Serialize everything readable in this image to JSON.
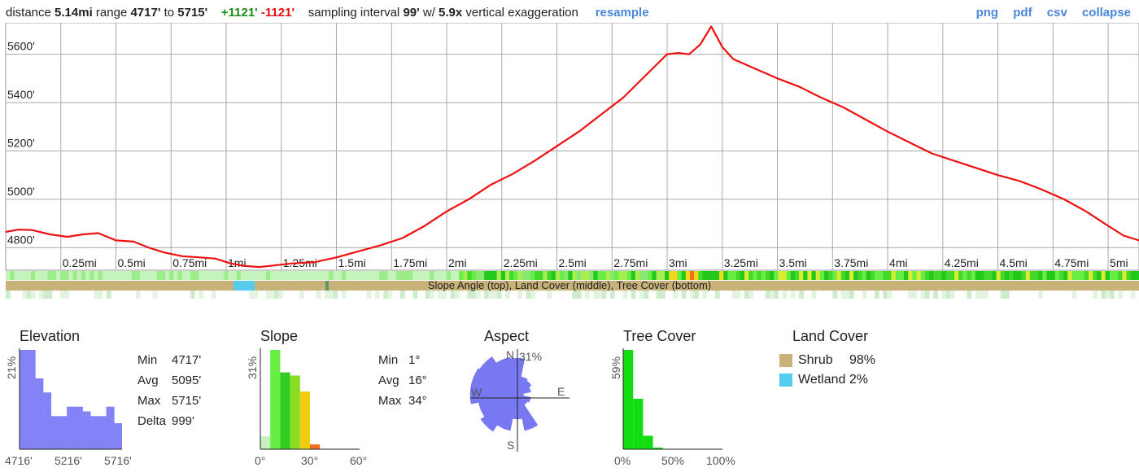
{
  "header": {
    "distance_label": "distance",
    "distance_value": "5.14mi",
    "range_label": "range",
    "range_min": "4717'",
    "range_to": "to",
    "range_max": "5715'",
    "gain": "+1121'",
    "loss": "-1121'",
    "interval_label": "sampling interval",
    "interval_value": "99'",
    "w_label": "w/",
    "exaggeration_value": "5.9x",
    "exaggeration_label": "vertical exaggeration",
    "resample": "resample",
    "png": "png",
    "pdf": "pdf",
    "csv": "csv",
    "collapse": "collapse"
  },
  "colors": {
    "profile_line": "#ee1111",
    "grid": "#999999",
    "link": "#4a86d9",
    "gain": "#1a8a1a",
    "loss": "#e01010",
    "elevation_hist": "#8383f7",
    "shrub": "#c8b27a",
    "wetland": "#55ccee"
  },
  "strip_caption": "Slope Angle (top), Land Cover (middle), Tree Cover (bottom)",
  "chart_data": [
    {
      "type": "line",
      "title": "",
      "xlabel": "",
      "ylabel": "",
      "xlim": [
        0,
        5.14
      ],
      "ylim": [
        4717,
        5715
      ],
      "x_ticks": [
        0.25,
        0.5,
        0.75,
        1,
        1.25,
        1.5,
        1.75,
        2,
        2.25,
        2.5,
        2.75,
        3,
        3.25,
        3.5,
        3.75,
        4,
        4.25,
        4.5,
        4.75,
        5
      ],
      "x_tick_labels": [
        "0.25mi",
        "0.5mi",
        "0.75mi",
        "1mi",
        "1.25mi",
        "1.5mi",
        "1.75mi",
        "2mi",
        "2.25mi",
        "2.5mi",
        "2.75mi",
        "3mi",
        "3.25mi",
        "3.5mi",
        "3.75mi",
        "4mi",
        "4.25mi",
        "4.5mi",
        "4.75mi",
        "5mi"
      ],
      "y_ticks": [
        4800,
        5000,
        5200,
        5400,
        5600
      ],
      "y_tick_labels": [
        "4800'",
        "5000'",
        "5200'",
        "5400'",
        "5600'"
      ],
      "grid": true,
      "series": [
        {
          "x": [
            0,
            0.06,
            0.12,
            0.2,
            0.28,
            0.35,
            0.42,
            0.5,
            0.58,
            0.65,
            0.72,
            0.8,
            0.88,
            0.95,
            1.02,
            1.08,
            1.15,
            1.2,
            1.3,
            1.4,
            1.5,
            1.6,
            1.7,
            1.8,
            1.9,
            2.0,
            2.1,
            2.2,
            2.3,
            2.4,
            2.5,
            2.6,
            2.7,
            2.8,
            2.9,
            3.0,
            3.05,
            3.1,
            3.15,
            3.2,
            3.25,
            3.3,
            3.4,
            3.5,
            3.6,
            3.7,
            3.8,
            3.9,
            4.0,
            4.1,
            4.2,
            4.3,
            4.4,
            4.5,
            4.6,
            4.7,
            4.8,
            4.9,
            5.0,
            5.07,
            5.14
          ],
          "y": [
            4865,
            4875,
            4873,
            4855,
            4845,
            4855,
            4860,
            4830,
            4825,
            4800,
            4780,
            4765,
            4760,
            4755,
            4735,
            4725,
            4720,
            4725,
            4735,
            4740,
            4760,
            4785,
            4810,
            4840,
            4890,
            4950,
            5000,
            5060,
            5105,
            5160,
            5220,
            5280,
            5350,
            5420,
            5510,
            5600,
            5605,
            5600,
            5640,
            5715,
            5630,
            5580,
            5540,
            5500,
            5465,
            5420,
            5380,
            5330,
            5280,
            5235,
            5190,
            5160,
            5130,
            5100,
            5075,
            5040,
            5000,
            4950,
            4890,
            4850,
            4830
          ]
        }
      ]
    },
    {
      "type": "bar",
      "title": "Elevation",
      "x_tick_labels": [
        "4716'",
        "5216'",
        "5716'"
      ],
      "xlim": [
        4716,
        5716
      ],
      "ymax_label": "21%",
      "values": [
        21,
        21,
        15,
        12,
        7,
        7,
        9,
        9,
        8,
        7,
        7,
        9,
        5.5
      ],
      "stats": [
        {
          "label": "Min",
          "value": "4717'"
        },
        {
          "label": "Avg",
          "value": "5095'"
        },
        {
          "label": "Max",
          "value": "5715'"
        },
        {
          "label": "Delta",
          "value": "999'"
        }
      ]
    },
    {
      "type": "bar",
      "title": "Slope",
      "x_tick_labels": [
        "0°",
        "30°",
        "60°"
      ],
      "xlim": [
        0,
        60
      ],
      "ymax_label": "31%",
      "bins": [
        {
          "from": 0,
          "to": 6,
          "value": 4,
          "color": "#c8f0c0"
        },
        {
          "from": 6,
          "to": 12,
          "value": 31,
          "color": "#66ee44"
        },
        {
          "from": 12,
          "to": 18,
          "value": 24,
          "color": "#33cc22"
        },
        {
          "from": 18,
          "to": 24,
          "value": 23,
          "color": "#88dd22"
        },
        {
          "from": 24,
          "to": 30,
          "value": 18,
          "color": "#f0cc10"
        },
        {
          "from": 30,
          "to": 36,
          "value": 1.5,
          "color": "#f07018"
        }
      ],
      "stats": [
        {
          "label": "Min",
          "value": "1°"
        },
        {
          "label": "Avg",
          "value": "16°"
        },
        {
          "label": "Max",
          "value": "34°"
        }
      ]
    },
    {
      "type": "pie",
      "title": "Aspect",
      "max_label": "31%",
      "directions": [
        "N",
        "E",
        "S",
        "W"
      ],
      "petals": [
        {
          "dir": "N",
          "value": 24
        },
        {
          "dir": "NNE",
          "value": 12
        },
        {
          "dir": "NE",
          "value": 11
        },
        {
          "dir": "ENE",
          "value": 9
        },
        {
          "dir": "E",
          "value": 4
        },
        {
          "dir": "ESE",
          "value": 9
        },
        {
          "dir": "SE",
          "value": 8
        },
        {
          "dir": "SSE",
          "value": 24
        },
        {
          "dir": "S",
          "value": 16
        },
        {
          "dir": "SSW",
          "value": 24
        },
        {
          "dir": "SW",
          "value": 29
        },
        {
          "dir": "WSW",
          "value": 26
        },
        {
          "dir": "W",
          "value": 31
        },
        {
          "dir": "WNW",
          "value": 31
        },
        {
          "dir": "NW",
          "value": 30
        },
        {
          "dir": "NNW",
          "value": 25
        }
      ]
    },
    {
      "type": "bar",
      "title": "Tree Cover",
      "x_tick_labels": [
        "0%",
        "50%",
        "100%"
      ],
      "xlim": [
        0,
        100
      ],
      "ymax_label": "59%",
      "bins": [
        {
          "from": 0,
          "to": 10,
          "value": 59
        },
        {
          "from": 10,
          "to": 20,
          "value": 30
        },
        {
          "from": 20,
          "to": 30,
          "value": 8
        },
        {
          "from": 30,
          "to": 40,
          "value": 1
        }
      ]
    },
    {
      "type": "table",
      "title": "Land Cover",
      "items": [
        {
          "label": "Shrub",
          "value": "98%",
          "color": "#c8b27a"
        },
        {
          "label": "Wetland",
          "value": "2%",
          "color": "#55ccee"
        }
      ]
    }
  ]
}
